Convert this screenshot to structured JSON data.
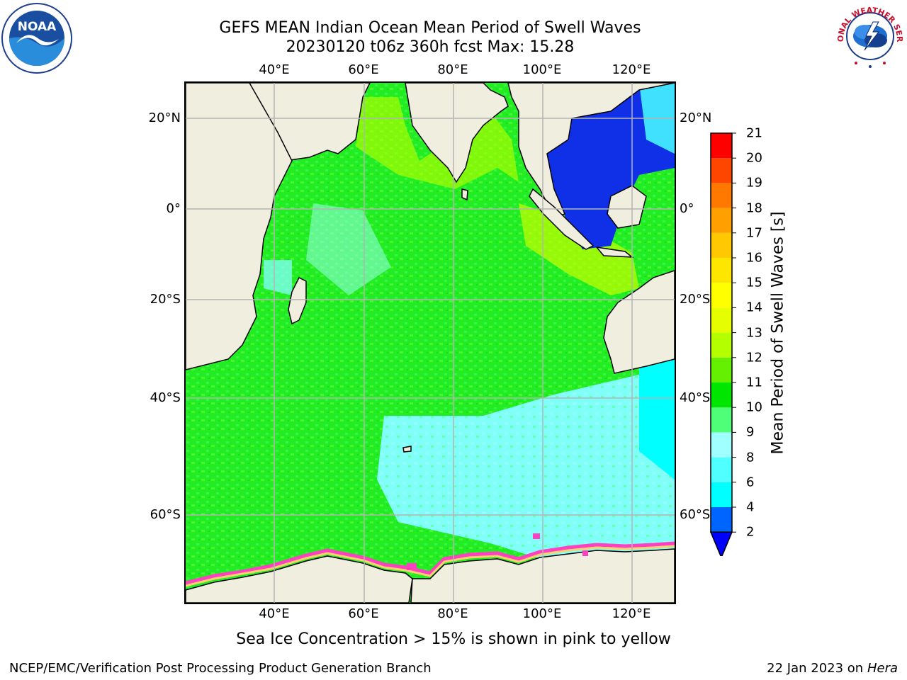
{
  "title": {
    "line1": "GEFS MEAN Indian Ocean Mean Period of Swell Waves",
    "line2": "20230120 t06z 360h fcst   Max: 15.28"
  },
  "map": {
    "lon_labels": [
      "40°E",
      "60°E",
      "80°E",
      "100°E",
      "120°E"
    ],
    "lat_labels": [
      "20°N",
      "0°",
      "20°S",
      "40°S",
      "60°S"
    ],
    "land_color": "#f0eedf",
    "grid_color": "#b4b4b4"
  },
  "colorbar": {
    "label": "Mean Period of Swell Waves [s]",
    "levels": [
      "2",
      "4",
      "6",
      "8",
      "9",
      "10",
      "11",
      "12",
      "13",
      "14",
      "15",
      "16",
      "17",
      "18",
      "19",
      "20",
      "21"
    ],
    "colors": [
      "#0064ff",
      "#00c8ff",
      "#00ffff",
      "#50ffff",
      "#a0ffff",
      "#50ff78",
      "#00e600",
      "#64f000",
      "#b4ff00",
      "#e6ff00",
      "#ffff00",
      "#ffe600",
      "#ffc800",
      "#ffa000",
      "#ff7800",
      "#ff4600",
      "#ff0000"
    ],
    "extend_color": "#0000ff"
  },
  "ice_note": "Sea Ice Concentration > 15% is shown in pink to yellow",
  "footer": {
    "left": "NCEP/EMC/Verification Post Processing Product Generation Branch",
    "date": "22 Jan 2023 on ",
    "machine": "Hera"
  },
  "logos": {
    "noaa_text": "NOAA",
    "nws_text": "NATIONAL WEATHER SERVICE"
  }
}
